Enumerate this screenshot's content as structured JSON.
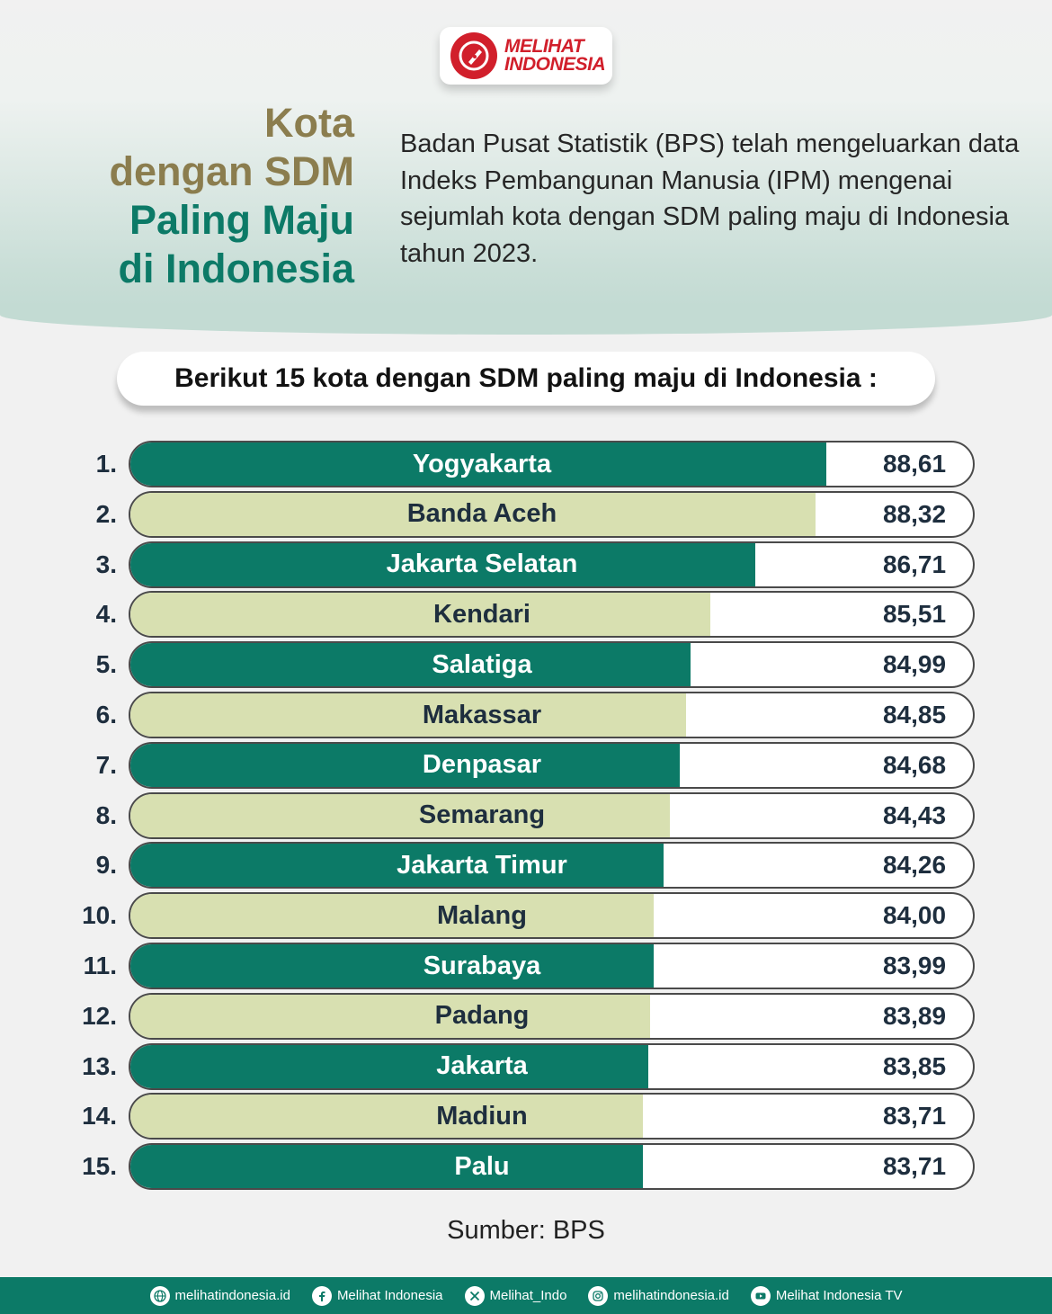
{
  "brand": {
    "line1": "MELIHAT",
    "line2": "INDONESIA",
    "accent": "#d11f2b"
  },
  "title": {
    "line1": "Kota",
    "line2": "dengan SDM",
    "line3": "Paling Maju",
    "line4": "di Indonesia"
  },
  "intro": "Badan Pusat Statistik (BPS) telah mengeluarkan data Indeks Pembangunan Manusia (IPM) mengenai sejumlah kota dengan SDM paling maju di Indonesia tahun 2023.",
  "subtitle": "Berikut 15 kota dengan SDM paling maju di Indonesia :",
  "colors": {
    "teal": "#0c7a67",
    "beige": "#d8e0b1",
    "olive": "#8b7d4e"
  },
  "chart_data": {
    "type": "bar",
    "orientation": "horizontal",
    "title": "Kota dengan SDM Paling Maju di Indonesia",
    "ranks": [
      "1.",
      "2.",
      "3.",
      "4.",
      "5.",
      "6.",
      "7.",
      "8.",
      "9.",
      "10.",
      "11.",
      "12.",
      "13.",
      "14.",
      "15."
    ],
    "categories": [
      "Yogyakarta",
      "Banda Aceh",
      "Jakarta Selatan",
      "Kendari",
      "Salatiga",
      "Makassar",
      "Denpasar",
      "Semarang",
      "Jakarta Timur",
      "Malang",
      "Surabaya",
      "Padang",
      "Jakarta",
      "Madiun",
      "Palu"
    ],
    "values": [
      88.61,
      88.32,
      86.71,
      85.51,
      84.99,
      84.85,
      84.68,
      84.43,
      84.26,
      84.0,
      83.99,
      83.89,
      83.85,
      83.71,
      83.71
    ],
    "value_labels": [
      "88,61",
      "88,32",
      "86,71",
      "85,51",
      "84,99",
      "84,85",
      "84,68",
      "84,43",
      "84,26",
      "84,00",
      "83,99",
      "83,89",
      "83,85",
      "83,71",
      "83,71"
    ],
    "bar_colors": [
      "teal",
      "beige"
    ],
    "legend": "none",
    "grid": false
  },
  "source": "Sumber: BPS",
  "footer": [
    {
      "icon": "globe-icon",
      "label": "melihatindonesia.id"
    },
    {
      "icon": "facebook-icon",
      "label": "Melihat Indonesia"
    },
    {
      "icon": "x-icon",
      "label": "Melihat_Indo"
    },
    {
      "icon": "instagram-icon",
      "label": "melihatindonesia.id"
    },
    {
      "icon": "youtube-icon",
      "label": "Melihat Indonesia TV"
    }
  ]
}
